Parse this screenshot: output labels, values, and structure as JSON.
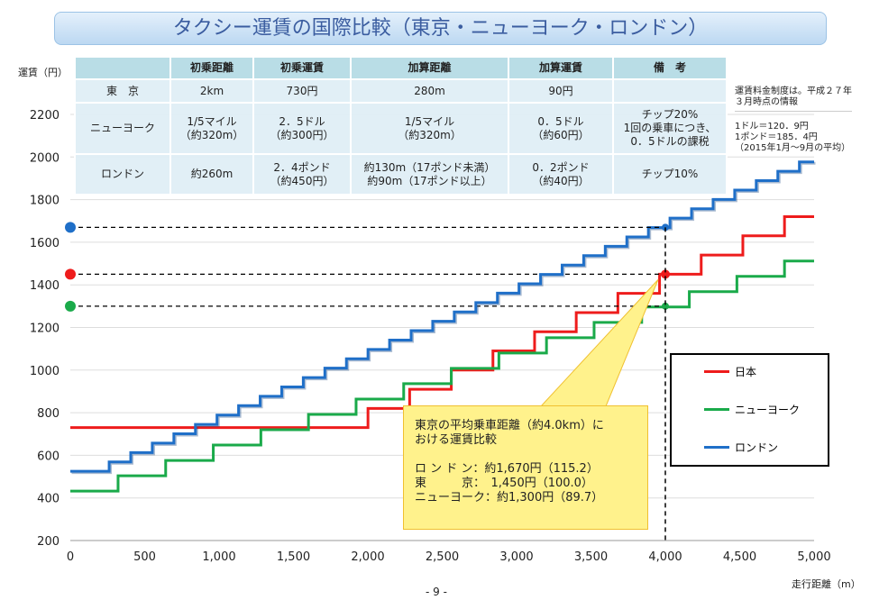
{
  "title": "タクシー運賃の国際比較（東京・ニューヨーク・ロンドン）",
  "table": {
    "headers": [
      "",
      "初乗距離",
      "初乗運賃",
      "加算距離",
      "加算運賃",
      "備　考"
    ],
    "rows": [
      [
        "東　京",
        "2km",
        "730円",
        "280m",
        "90円",
        ""
      ],
      [
        "ニューヨーク",
        "1/5マイル\n（約320m）",
        "2．5ドル\n（約300円）",
        "1/5マイル\n（約320m）",
        "0．5ドル\n（約60円）",
        "チップ20%\n1回の乗車につき、\n0．5ドルの課税"
      ],
      [
        "ロンドン",
        "約260m",
        "2．4ポンド\n（約450円）",
        "約130m（17ポンド未満）\n約90m（17ポンド以上）",
        "0．2ポンド\n（約40円）",
        "チップ10%"
      ]
    ]
  },
  "notes": {
    "system": "運賃料金制度は。平成２７年\n３月時点の情報",
    "rates": "1ドル＝120．9円\n1ポンド＝185．4円\n（2015年1月～9月の平均）"
  },
  "callout": {
    "heading": "東京の平均乗車距離（約4.0km）に\nおける運賃比較",
    "lines": [
      "ロ ン ド ン：約1,670円（115.2）",
      "東　　　京：　1,450円（100.0）",
      "ニューヨーク：約1,300円（89.7）"
    ]
  },
  "page_number": "- 9 -",
  "chart_data": {
    "type": "line",
    "title": "タクシー運賃の国際比較（東京・ニューヨーク・ロンドン）",
    "xlabel": "走行距離（m）",
    "ylabel": "運賃（円）",
    "xlim": [
      0,
      5000
    ],
    "ylim": [
      200,
      2200
    ],
    "xticks": [
      0,
      500,
      1000,
      1500,
      2000,
      2500,
      3000,
      3500,
      4000,
      4500,
      5000
    ],
    "xtick_labels": [
      "0",
      "500",
      "1,000",
      "1,500",
      "2,000",
      "2,500",
      "3,000",
      "3,500",
      "4,000",
      "4,500",
      "5,000"
    ],
    "yticks": [
      200,
      400,
      600,
      800,
      1000,
      1200,
      1400,
      1600,
      1800,
      2000,
      2200
    ],
    "grid": true,
    "legend_position": "bottom-right",
    "series": [
      {
        "name": "日本",
        "color": "#ee1c1c",
        "start": 730,
        "first_step_m": 2000,
        "interval_m": 280,
        "increment": 90,
        "at_4000": 1450
      },
      {
        "name": "ニューヨーク",
        "color": "#1aaa4a",
        "start": 432,
        "first_step_m": 320,
        "interval_m": 320,
        "increment": 72,
        "at_4000": 1300
      },
      {
        "name": "ロンドン",
        "color": "#1f6fc8",
        "start": 525,
        "first_step_m": 260,
        "interval_m": 145,
        "increment": 44,
        "at_4000": 1670
      }
    ],
    "comparison_x": 4000
  }
}
